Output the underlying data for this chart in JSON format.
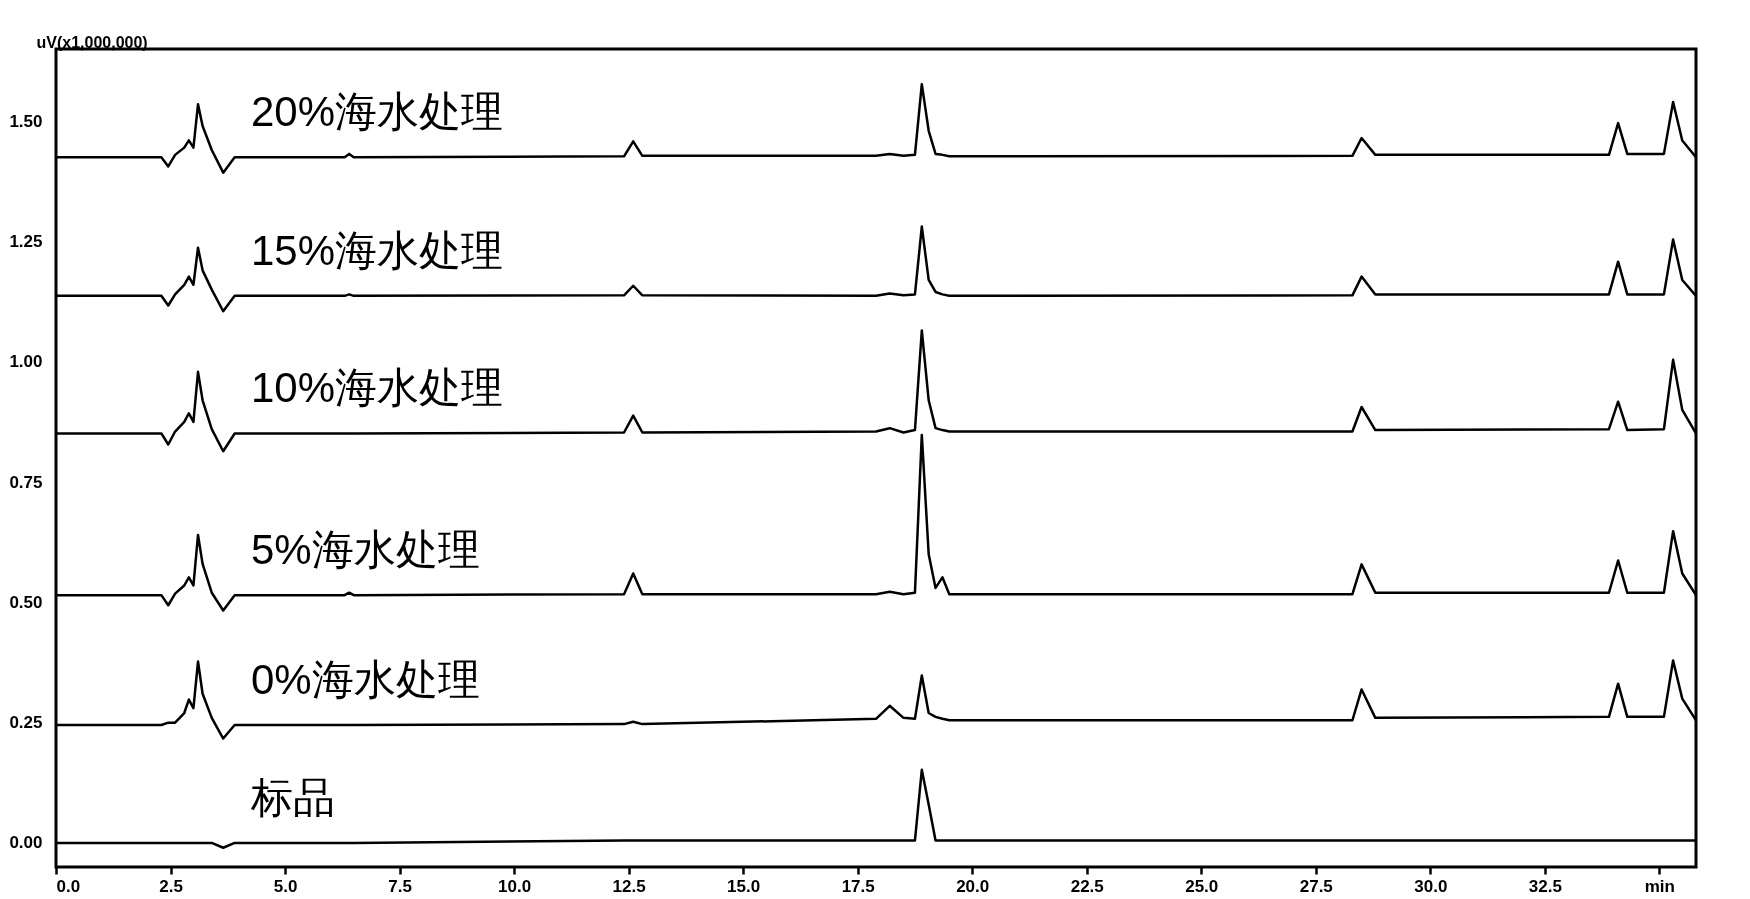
{
  "chart_data": {
    "type": "line",
    "ylabel": "uV(x1,000,000)",
    "x": [
      0,
      2.3,
      2.45,
      2.6,
      2.8,
      2.9,
      3.0,
      3.1,
      3.2,
      3.4,
      3.65,
      3.9,
      6.3,
      6.4,
      6.5,
      12.4,
      12.6,
      12.8,
      17.9,
      18.2,
      18.5,
      18.75,
      18.9,
      19.05,
      19.2,
      19.35,
      19.5,
      28.3,
      28.5,
      28.8,
      33.9,
      34.1,
      34.3,
      35.1,
      35.3,
      35.5,
      35.8
    ],
    "series": [
      {
        "name": "20%海水处理",
        "color": "#000000",
        "values": [
          1.425,
          1.425,
          1.406,
          1.43,
          1.445,
          1.46,
          1.445,
          1.535,
          1.49,
          1.44,
          1.393,
          1.425,
          1.425,
          1.432,
          1.425,
          1.427,
          1.458,
          1.428,
          1.428,
          1.432,
          1.428,
          1.43,
          1.577,
          1.48,
          1.432,
          1.43,
          1.427,
          1.428,
          1.465,
          1.43,
          1.43,
          1.496,
          1.432,
          1.432,
          1.54,
          1.46,
          1.425
        ]
      },
      {
        "name": "15%海水处理",
        "color": "#000000",
        "values": [
          1.137,
          1.137,
          1.117,
          1.14,
          1.16,
          1.177,
          1.16,
          1.237,
          1.19,
          1.15,
          1.105,
          1.137,
          1.137,
          1.14,
          1.137,
          1.138,
          1.158,
          1.138,
          1.137,
          1.142,
          1.138,
          1.14,
          1.281,
          1.17,
          1.145,
          1.14,
          1.137,
          1.138,
          1.177,
          1.14,
          1.14,
          1.208,
          1.14,
          1.14,
          1.254,
          1.17,
          1.137
        ]
      },
      {
        "name": "10%海水处理",
        "color": "#000000",
        "values": [
          0.851,
          0.851,
          0.828,
          0.855,
          0.875,
          0.893,
          0.875,
          0.979,
          0.92,
          0.86,
          0.814,
          0.851,
          0.851,
          0.851,
          0.851,
          0.853,
          0.888,
          0.853,
          0.855,
          0.862,
          0.853,
          0.858,
          1.065,
          0.92,
          0.862,
          0.858,
          0.855,
          0.855,
          0.906,
          0.858,
          0.86,
          0.917,
          0.858,
          0.86,
          1.004,
          0.9,
          0.851
        ]
      },
      {
        "name": "5%海水处理",
        "color": "#000000",
        "values": [
          0.515,
          0.515,
          0.494,
          0.518,
          0.535,
          0.552,
          0.535,
          0.64,
          0.58,
          0.52,
          0.483,
          0.515,
          0.515,
          0.52,
          0.515,
          0.517,
          0.56,
          0.517,
          0.517,
          0.522,
          0.517,
          0.52,
          0.848,
          0.6,
          0.53,
          0.552,
          0.517,
          0.517,
          0.579,
          0.52,
          0.52,
          0.587,
          0.52,
          0.52,
          0.648,
          0.56,
          0.515
        ]
      },
      {
        "name": "0%海水处理",
        "color": "#000000",
        "values": [
          0.245,
          0.245,
          0.25,
          0.25,
          0.27,
          0.298,
          0.28,
          0.377,
          0.31,
          0.26,
          0.217,
          0.245,
          0.245,
          0.245,
          0.245,
          0.247,
          0.252,
          0.247,
          0.258,
          0.285,
          0.26,
          0.258,
          0.348,
          0.27,
          0.262,
          0.258,
          0.255,
          0.255,
          0.319,
          0.26,
          0.262,
          0.331,
          0.262,
          0.262,
          0.379,
          0.3,
          0.255
        ]
      },
      {
        "name": "标品",
        "color": "#000000",
        "values": [
          0,
          0,
          0,
          0,
          0,
          0,
          0,
          0,
          0,
          0,
          -0.01,
          0,
          0,
          0,
          0,
          0.005,
          0.005,
          0.005,
          0.005,
          0.005,
          0.005,
          0.005,
          0.152,
          0.08,
          0.005,
          0.005,
          0.005,
          0.005,
          0.005,
          0.005,
          0.005,
          0.005,
          0.005,
          0.005,
          0.005,
          0.005,
          0.005
        ]
      }
    ],
    "xlim": [
      0,
      35.8
    ],
    "xticks": [
      {
        "value": 0,
        "label": "0.0"
      },
      2.5,
      {
        "value": 5,
        "label": "5.0"
      },
      7.5,
      {
        "value": 10,
        "label": "10.0"
      },
      12.5,
      {
        "value": 15,
        "label": "15.0"
      },
      17.5,
      {
        "value": 20,
        "label": "20.0"
      },
      22.5,
      {
        "value": 25,
        "label": "25.0"
      },
      27.5,
      {
        "value": 30,
        "label": "30.0"
      },
      32.5,
      {
        "value": 35,
        "label": "min"
      }
    ],
    "ylim": [
      -0.05,
      1.65
    ],
    "yticks": [
      {
        "value": 0,
        "label": "0.00"
      },
      0.25,
      {
        "value": 0.5,
        "label": "0.50"
      },
      0.75,
      {
        "value": 1,
        "label": "1.00"
      },
      1.25,
      {
        "value": 1.5,
        "label": "1.50"
      }
    ],
    "grid": false,
    "legend": false,
    "marker": "none",
    "line_style": "solid"
  }
}
